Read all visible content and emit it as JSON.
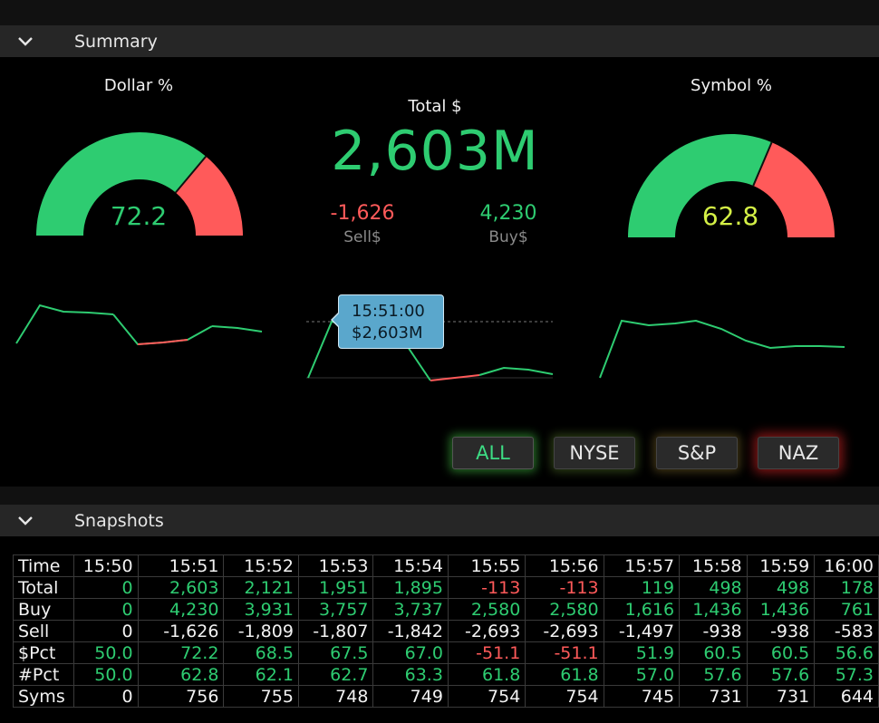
{
  "summary": {
    "title": "Summary",
    "dollar_gauge": {
      "title": "Dollar %",
      "value": "72.2",
      "fraction": 0.722
    },
    "symbol_gauge": {
      "title": "Symbol %",
      "value": "62.8",
      "fraction": 0.628
    },
    "total_label": "Total $",
    "total_value": "2,603M",
    "sell_value": "-1,626",
    "sell_label": "Sell$",
    "buy_value": "4,230",
    "buy_label": "Buy$",
    "tooltip": {
      "time": "15:51:00",
      "value": "$2,603M"
    },
    "buttons": {
      "all": "ALL",
      "nyse": "NYSE",
      "sp": "S&P",
      "naz": "NAZ"
    },
    "colors": {
      "positive": "#2ecc71",
      "negative": "#ff5a5a",
      "symbol_value": "#d4f046",
      "tooltip_bg": "#5aa7cc"
    }
  },
  "snapshots": {
    "title": "Snapshots",
    "corner": "Time",
    "times": [
      "15:50",
      "15:51",
      "15:52",
      "15:53",
      "15:54",
      "15:55",
      "15:56",
      "15:57",
      "15:58",
      "15:59",
      "16:00"
    ],
    "rows": [
      {
        "label": "Total",
        "cells": [
          {
            "v": "0",
            "c": "pos"
          },
          {
            "v": "2,603",
            "c": "pos"
          },
          {
            "v": "2,121",
            "c": "pos"
          },
          {
            "v": "1,951",
            "c": "pos"
          },
          {
            "v": "1,895",
            "c": "pos"
          },
          {
            "v": "-113",
            "c": "neg"
          },
          {
            "v": "-113",
            "c": "neg"
          },
          {
            "v": "119",
            "c": "pos"
          },
          {
            "v": "498",
            "c": "pos"
          },
          {
            "v": "498",
            "c": "pos"
          },
          {
            "v": "178",
            "c": "pos"
          }
        ]
      },
      {
        "label": "Buy",
        "cells": [
          {
            "v": "0",
            "c": "pos"
          },
          {
            "v": "4,230",
            "c": "pos"
          },
          {
            "v": "3,931",
            "c": "pos"
          },
          {
            "v": "3,757",
            "c": "pos"
          },
          {
            "v": "3,737",
            "c": "pos"
          },
          {
            "v": "2,580",
            "c": "pos"
          },
          {
            "v": "2,580",
            "c": "pos"
          },
          {
            "v": "1,616",
            "c": "pos"
          },
          {
            "v": "1,436",
            "c": "pos"
          },
          {
            "v": "1,436",
            "c": "pos"
          },
          {
            "v": "761",
            "c": "pos"
          }
        ]
      },
      {
        "label": "Sell",
        "cells": [
          {
            "v": "0",
            "c": "neu"
          },
          {
            "v": "-1,626",
            "c": "neu"
          },
          {
            "v": "-1,809",
            "c": "neu"
          },
          {
            "v": "-1,807",
            "c": "neu"
          },
          {
            "v": "-1,842",
            "c": "neu"
          },
          {
            "v": "-2,693",
            "c": "neu"
          },
          {
            "v": "-2,693",
            "c": "neu"
          },
          {
            "v": "-1,497",
            "c": "neu"
          },
          {
            "v": "-938",
            "c": "neu"
          },
          {
            "v": "-938",
            "c": "neu"
          },
          {
            "v": "-583",
            "c": "neu"
          }
        ]
      },
      {
        "label": "$Pct",
        "cells": [
          {
            "v": "50.0",
            "c": "pos"
          },
          {
            "v": "72.2",
            "c": "pos"
          },
          {
            "v": "68.5",
            "c": "pos"
          },
          {
            "v": "67.5",
            "c": "pos"
          },
          {
            "v": "67.0",
            "c": "pos"
          },
          {
            "v": "-51.1",
            "c": "neg"
          },
          {
            "v": "-51.1",
            "c": "neg"
          },
          {
            "v": "51.9",
            "c": "pos"
          },
          {
            "v": "60.5",
            "c": "pos"
          },
          {
            "v": "60.5",
            "c": "pos"
          },
          {
            "v": "56.6",
            "c": "pos"
          }
        ]
      },
      {
        "label": "#Pct",
        "cells": [
          {
            "v": "50.0",
            "c": "pos"
          },
          {
            "v": "62.8",
            "c": "pos"
          },
          {
            "v": "62.1",
            "c": "pos"
          },
          {
            "v": "62.7",
            "c": "pos"
          },
          {
            "v": "63.3",
            "c": "pos"
          },
          {
            "v": "61.8",
            "c": "pos"
          },
          {
            "v": "61.8",
            "c": "pos"
          },
          {
            "v": "57.0",
            "c": "pos"
          },
          {
            "v": "57.6",
            "c": "pos"
          },
          {
            "v": "57.6",
            "c": "pos"
          },
          {
            "v": "57.3",
            "c": "pos"
          }
        ]
      },
      {
        "label": "Syms",
        "cells": [
          {
            "v": "0",
            "c": "neu"
          },
          {
            "v": "756",
            "c": "neu"
          },
          {
            "v": "755",
            "c": "neu"
          },
          {
            "v": "748",
            "c": "neu"
          },
          {
            "v": "749",
            "c": "neu"
          },
          {
            "v": "754",
            "c": "neu"
          },
          {
            "v": "754",
            "c": "neu"
          },
          {
            "v": "745",
            "c": "neu"
          },
          {
            "v": "731",
            "c": "neu"
          },
          {
            "v": "731",
            "c": "neu"
          },
          {
            "v": "644",
            "c": "neu"
          }
        ]
      }
    ]
  }
}
